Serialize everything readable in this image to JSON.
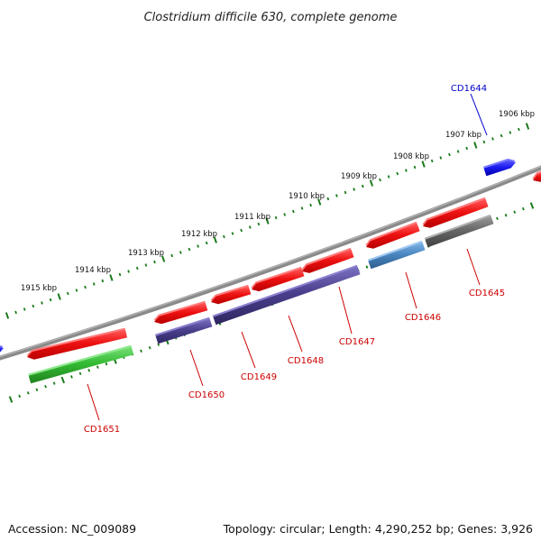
{
  "title": "Clostridium difficile 630, complete genome",
  "scale_ticks": [
    {
      "label": "1906 kbp"
    },
    {
      "label": "1907 kbp"
    },
    {
      "label": "1908 kbp"
    },
    {
      "label": "1909 kbp"
    },
    {
      "label": "1910 kbp"
    },
    {
      "label": "1911 kbp"
    },
    {
      "label": "1912 kbp"
    },
    {
      "label": "1913 kbp"
    },
    {
      "label": "1914 kbp"
    },
    {
      "label": "1915 kbp"
    }
  ],
  "genes": [
    {
      "label": "CD1644",
      "label_color": "#0000cc"
    },
    {
      "label": "CD1645",
      "label_color": "#cc0000"
    },
    {
      "label": "CD1646",
      "label_color": "#cc0000"
    },
    {
      "label": "CD1647",
      "label_color": "#cc0000"
    },
    {
      "label": "CD1648",
      "label_color": "#cc0000"
    },
    {
      "label": "CD1649",
      "label_color": "#cc0000"
    },
    {
      "label": "CD1650",
      "label_color": "#cc0000"
    },
    {
      "label": "CD1651",
      "label_color": "#cc0000"
    }
  ],
  "colors": {
    "forward_feature": "#ee1111",
    "blue_feature": "#1a1aee",
    "purple_feature": "#4a3f8c",
    "steelblue_feature": "#4a86c0",
    "green_feature": "#33bb33",
    "gray_feature": "#666666",
    "backbone": "#8a8a8a",
    "ticks": "#1a7a1a"
  },
  "footer": {
    "accession": "Accession: NC_009089",
    "summary": "Topology: circular; Length: 4,290,252 bp; Genes: 3,926"
  }
}
